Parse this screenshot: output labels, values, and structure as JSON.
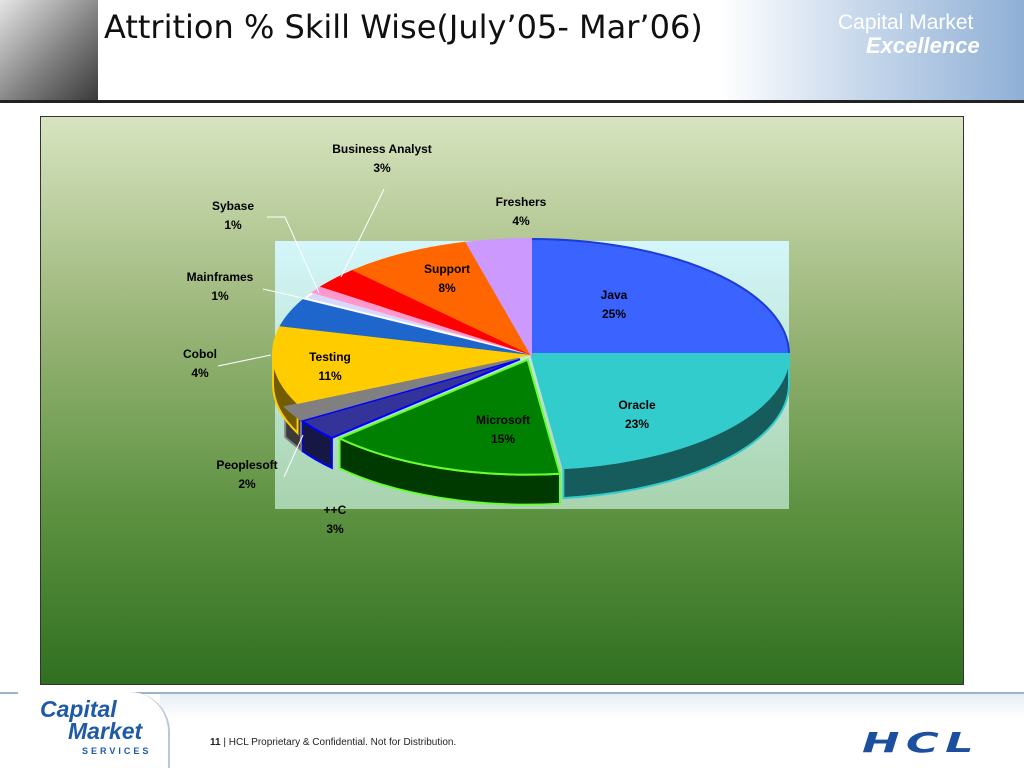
{
  "header": {
    "title": "Attrition % Skill Wise(July’05- Mar’06)",
    "brand_line1": "Capital Market",
    "brand_line2": "Excellence"
  },
  "footer": {
    "page_number": "11",
    "separator": "|",
    "confidential_text": "HCL Proprietary & Confidential. Not for Distribution.",
    "cm_logo_line1": "Capital",
    "cm_logo_line2": "Market",
    "cm_logo_line3": "SERVICES",
    "hcl_logo": "HCL"
  },
  "chart_data": {
    "type": "pie",
    "title": "",
    "style": "3d-exploded",
    "slices": [
      {
        "label": "Java",
        "value": 25,
        "pct_label": "25%",
        "color": "#3a63ff",
        "border": "#1b3cd6"
      },
      {
        "label": "Oracle",
        "value": 23,
        "pct_label": "23%",
        "color": "#33cccc",
        "border": "#33cccc"
      },
      {
        "label": "Microsoft",
        "value": 15,
        "pct_label": "15%",
        "color": "#008000",
        "border": "#66ff33"
      },
      {
        "label": "++C",
        "value": 3,
        "pct_label": "3%",
        "color": "#333399",
        "border": "#0000ff"
      },
      {
        "label": "Peoplesoft",
        "value": 2,
        "pct_label": "2%",
        "color": "#808080",
        "border": "#808080"
      },
      {
        "label": "Testing",
        "value": 11,
        "pct_label": "11%",
        "color": "#ffcc00",
        "border": "#ffcc00"
      },
      {
        "label": "Cobol",
        "value": 4,
        "pct_label": "4%",
        "color": "#1f66cc",
        "border": "#1f66cc"
      },
      {
        "label": "Mainframes",
        "value": 1,
        "pct_label": "1%",
        "color": "#d8d8ff",
        "border": "#ffffff"
      },
      {
        "label": "Sybase",
        "value": 1,
        "pct_label": "1%",
        "color": "#ff99cc",
        "border": "#ff99cc"
      },
      {
        "label": "Business Analyst",
        "value": 3,
        "pct_label": "3%",
        "color": "#ff0000",
        "border": "#ff0000"
      },
      {
        "label": "Support",
        "value": 8,
        "pct_label": "8%",
        "color": "#ff6600",
        "border": "#ff6600"
      },
      {
        "label": "Freshers",
        "value": 4,
        "pct_label": "4%",
        "color": "#cc99ff",
        "border": "#cc99ff"
      }
    ]
  }
}
